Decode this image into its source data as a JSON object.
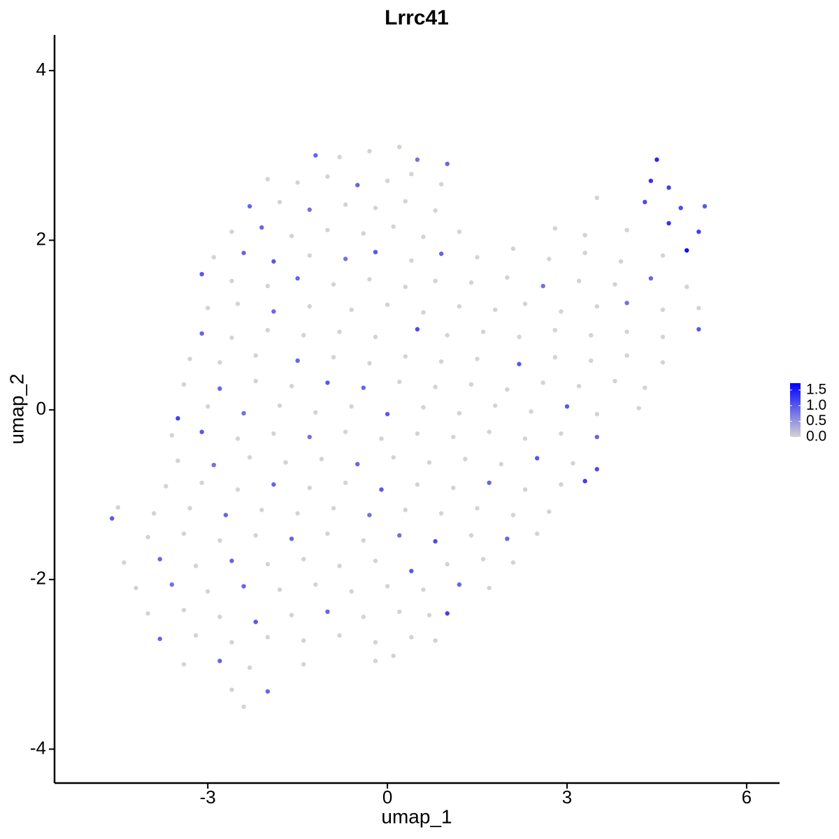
{
  "chart_data": {
    "type": "scatter",
    "title": "Lrrc41",
    "x_label": "umap_1",
    "y_label": "umap_2",
    "xlim": [
      -5.56,
      6.55
    ],
    "ylim": [
      -4.4,
      4.42
    ],
    "xticks": [
      -3,
      0,
      3,
      6
    ],
    "yticks": [
      -4,
      -2,
      0,
      2,
      4
    ],
    "low_color": "#d3d3d3",
    "high_color": "#0000ff",
    "color_range": [
      0,
      1.72
    ],
    "legend_ticks": [
      {
        "value": 0,
        "label": "0.0"
      },
      0.5,
      {
        "value": 1,
        "label": "1.0"
      },
      1.5
    ],
    "legend_position": "right",
    "points": [
      [
        -1.2,
        3.0,
        0.9
      ],
      [
        -0.8,
        2.98,
        0
      ],
      [
        -0.3,
        3.05,
        0
      ],
      [
        0.2,
        3.1,
        0
      ],
      [
        0.5,
        2.95,
        0.8
      ],
      [
        1.0,
        2.9,
        0.9
      ],
      [
        4.5,
        2.95,
        1.4
      ],
      [
        -2.0,
        2.72,
        0
      ],
      [
        -1.5,
        2.68,
        0
      ],
      [
        -1.0,
        2.75,
        0
      ],
      [
        -0.5,
        2.65,
        0.9
      ],
      [
        0.0,
        2.7,
        0
      ],
      [
        0.4,
        2.78,
        0
      ],
      [
        0.9,
        2.66,
        0
      ],
      [
        4.4,
        2.7,
        1.3
      ],
      [
        4.7,
        2.62,
        1.2
      ],
      [
        -2.3,
        2.4,
        0.9
      ],
      [
        -1.8,
        2.45,
        0
      ],
      [
        -1.3,
        2.36,
        0.8
      ],
      [
        -0.7,
        2.42,
        0
      ],
      [
        -0.2,
        2.38,
        0
      ],
      [
        0.3,
        2.46,
        0
      ],
      [
        0.8,
        2.35,
        0
      ],
      [
        3.5,
        2.5,
        0
      ],
      [
        4.3,
        2.45,
        1.1
      ],
      [
        4.9,
        2.38,
        1.1
      ],
      [
        5.3,
        2.4,
        1.0
      ],
      [
        -2.6,
        2.1,
        0
      ],
      [
        -2.1,
        2.15,
        0.9
      ],
      [
        -1.6,
        2.05,
        0
      ],
      [
        -1.0,
        2.12,
        0
      ],
      [
        -0.4,
        2.08,
        0
      ],
      [
        0.1,
        2.16,
        0
      ],
      [
        0.6,
        2.04,
        0
      ],
      [
        1.2,
        2.1,
        0
      ],
      [
        2.8,
        2.14,
        0
      ],
      [
        3.3,
        2.06,
        0
      ],
      [
        4.0,
        2.12,
        0
      ],
      [
        4.7,
        2.2,
        1.3
      ],
      [
        5.2,
        2.1,
        1.2
      ],
      [
        -2.9,
        1.8,
        0
      ],
      [
        -2.4,
        1.85,
        0.9
      ],
      [
        -1.9,
        1.75,
        1.0
      ],
      [
        -1.3,
        1.82,
        0
      ],
      [
        -0.7,
        1.78,
        0.8
      ],
      [
        -0.2,
        1.86,
        1.0
      ],
      [
        0.4,
        1.76,
        0
      ],
      [
        0.9,
        1.84,
        0.9
      ],
      [
        1.5,
        1.8,
        0
      ],
      [
        2.1,
        1.9,
        0
      ],
      [
        2.7,
        1.78,
        0
      ],
      [
        3.3,
        1.85,
        0
      ],
      [
        3.9,
        1.75,
        0
      ],
      [
        4.6,
        1.82,
        0
      ],
      [
        5.0,
        1.88,
        1.6
      ],
      [
        -3.1,
        1.6,
        1.0
      ],
      [
        -2.6,
        1.52,
        0
      ],
      [
        -2.0,
        1.46,
        0
      ],
      [
        -1.5,
        1.55,
        0.9
      ],
      [
        -0.9,
        1.48,
        0
      ],
      [
        -0.3,
        1.54,
        0
      ],
      [
        0.3,
        1.45,
        0
      ],
      [
        0.8,
        1.52,
        0
      ],
      [
        1.4,
        1.5,
        0
      ],
      [
        2.0,
        1.56,
        0
      ],
      [
        2.6,
        1.46,
        0.8
      ],
      [
        3.2,
        1.52,
        0
      ],
      [
        3.8,
        1.48,
        0
      ],
      [
        4.4,
        1.55,
        0.9
      ],
      [
        5.0,
        1.45,
        0
      ],
      [
        -3.0,
        1.2,
        0
      ],
      [
        -2.5,
        1.25,
        0
      ],
      [
        -1.9,
        1.16,
        0.9
      ],
      [
        -1.3,
        1.22,
        0
      ],
      [
        -0.6,
        1.18,
        0
      ],
      [
        0.0,
        1.24,
        0
      ],
      [
        0.6,
        1.15,
        0
      ],
      [
        1.2,
        1.22,
        0
      ],
      [
        1.8,
        1.18,
        0
      ],
      [
        2.3,
        1.25,
        0
      ],
      [
        2.9,
        1.16,
        0
      ],
      [
        3.5,
        1.22,
        0
      ],
      [
        4.0,
        1.26,
        0.8
      ],
      [
        4.6,
        1.18,
        0
      ],
      [
        5.2,
        1.2,
        0
      ],
      [
        -3.1,
        0.9,
        0.9
      ],
      [
        -2.6,
        0.85,
        0
      ],
      [
        -2.0,
        0.94,
        0
      ],
      [
        -1.4,
        0.88,
        0
      ],
      [
        -0.8,
        0.92,
        0
      ],
      [
        -0.2,
        0.86,
        0
      ],
      [
        0.5,
        0.95,
        1.1
      ],
      [
        1.0,
        0.88,
        0
      ],
      [
        1.6,
        0.92,
        0
      ],
      [
        2.2,
        0.86,
        0
      ],
      [
        2.8,
        0.94,
        0
      ],
      [
        3.4,
        0.88,
        0
      ],
      [
        4.0,
        0.92,
        0
      ],
      [
        4.6,
        0.86,
        0
      ],
      [
        5.2,
        0.95,
        1.0
      ],
      [
        -3.3,
        0.6,
        0
      ],
      [
        -2.8,
        0.56,
        0
      ],
      [
        -2.2,
        0.64,
        0
      ],
      [
        -1.5,
        0.58,
        0.9
      ],
      [
        -0.9,
        0.62,
        0
      ],
      [
        -0.3,
        0.55,
        0
      ],
      [
        0.3,
        0.63,
        0
      ],
      [
        0.9,
        0.57,
        0
      ],
      [
        1.5,
        0.6,
        0
      ],
      [
        2.2,
        0.54,
        1.0
      ],
      [
        2.8,
        0.62,
        0
      ],
      [
        3.4,
        0.58,
        0
      ],
      [
        4.0,
        0.64,
        0
      ],
      [
        4.6,
        0.56,
        0
      ],
      [
        -3.4,
        0.3,
        0
      ],
      [
        -2.8,
        0.25,
        0.9
      ],
      [
        -2.2,
        0.34,
        0
      ],
      [
        -1.6,
        0.28,
        0
      ],
      [
        -1.0,
        0.32,
        1.0
      ],
      [
        -0.4,
        0.26,
        0.9
      ],
      [
        0.2,
        0.33,
        0
      ],
      [
        0.8,
        0.27,
        0
      ],
      [
        1.4,
        0.3,
        0
      ],
      [
        2.0,
        0.24,
        0
      ],
      [
        2.6,
        0.32,
        0
      ],
      [
        3.2,
        0.28,
        0
      ],
      [
        3.8,
        0.34,
        0
      ],
      [
        4.3,
        0.26,
        0
      ],
      [
        -3.5,
        -0.1,
        1.2
      ],
      [
        -3.0,
        0.04,
        0
      ],
      [
        -2.4,
        -0.04,
        0.8
      ],
      [
        -1.8,
        0.05,
        0
      ],
      [
        -1.2,
        -0.03,
        0
      ],
      [
        -0.6,
        0.04,
        0
      ],
      [
        0.0,
        -0.05,
        1.0
      ],
      [
        0.6,
        0.03,
        0
      ],
      [
        1.2,
        -0.04,
        0
      ],
      [
        1.8,
        0.05,
        0
      ],
      [
        2.4,
        -0.02,
        0
      ],
      [
        3.0,
        0.04,
        1.0
      ],
      [
        3.5,
        -0.05,
        0
      ],
      [
        4.2,
        0.02,
        0
      ],
      [
        -3.6,
        -0.3,
        0
      ],
      [
        -3.1,
        -0.26,
        1.0
      ],
      [
        -2.5,
        -0.34,
        0
      ],
      [
        -1.9,
        -0.28,
        0
      ],
      [
        -1.3,
        -0.32,
        0.8
      ],
      [
        -0.7,
        -0.26,
        0
      ],
      [
        -0.1,
        -0.34,
        0
      ],
      [
        0.5,
        -0.28,
        0
      ],
      [
        1.1,
        -0.32,
        0
      ],
      [
        1.7,
        -0.26,
        0
      ],
      [
        2.3,
        -0.34,
        0
      ],
      [
        2.9,
        -0.28,
        0
      ],
      [
        3.5,
        -0.32,
        0.9
      ],
      [
        -3.5,
        -0.6,
        0
      ],
      [
        -2.9,
        -0.65,
        0.8
      ],
      [
        -2.3,
        -0.56,
        0
      ],
      [
        -1.7,
        -0.62,
        0
      ],
      [
        -1.1,
        -0.58,
        0
      ],
      [
        -0.5,
        -0.64,
        0.9
      ],
      [
        0.1,
        -0.56,
        0
      ],
      [
        0.7,
        -0.62,
        0
      ],
      [
        1.3,
        -0.58,
        0
      ],
      [
        1.9,
        -0.64,
        0
      ],
      [
        2.5,
        -0.57,
        1.0
      ],
      [
        3.1,
        -0.63,
        0
      ],
      [
        3.5,
        -0.7,
        1.1
      ],
      [
        -3.7,
        -0.9,
        0
      ],
      [
        -3.1,
        -0.86,
        0
      ],
      [
        -2.5,
        -0.94,
        0
      ],
      [
        -1.9,
        -0.88,
        0.9
      ],
      [
        -1.3,
        -0.92,
        0
      ],
      [
        -0.7,
        -0.86,
        0
      ],
      [
        -0.1,
        -0.94,
        1.0
      ],
      [
        0.5,
        -0.88,
        0
      ],
      [
        1.1,
        -0.92,
        0
      ],
      [
        1.7,
        -0.86,
        0.9
      ],
      [
        2.3,
        -0.94,
        0
      ],
      [
        2.9,
        -0.88,
        0
      ],
      [
        3.3,
        -0.84,
        1.2
      ],
      [
        -4.5,
        -1.15,
        0
      ],
      [
        -4.6,
        -1.28,
        1.0
      ],
      [
        -3.9,
        -1.22,
        0
      ],
      [
        -3.3,
        -1.16,
        0
      ],
      [
        -2.7,
        -1.24,
        0.9
      ],
      [
        -2.1,
        -1.18,
        0
      ],
      [
        -1.5,
        -1.22,
        0
      ],
      [
        -0.9,
        -1.16,
        0
      ],
      [
        -0.3,
        -1.24,
        0.8
      ],
      [
        0.3,
        -1.18,
        0
      ],
      [
        0.9,
        -1.22,
        0
      ],
      [
        1.5,
        -1.16,
        0
      ],
      [
        2.1,
        -1.24,
        0
      ],
      [
        2.7,
        -1.2,
        0
      ],
      [
        -4.0,
        -1.5,
        0
      ],
      [
        -3.4,
        -1.46,
        0
      ],
      [
        -2.8,
        -1.54,
        0
      ],
      [
        -2.2,
        -1.48,
        0
      ],
      [
        -1.6,
        -1.52,
        0.9
      ],
      [
        -1.0,
        -1.46,
        0
      ],
      [
        -0.4,
        -1.54,
        0
      ],
      [
        0.2,
        -1.48,
        0.8
      ],
      [
        0.8,
        -1.55,
        1.1
      ],
      [
        1.4,
        -1.48,
        0
      ],
      [
        2.0,
        -1.52,
        0.9
      ],
      [
        2.5,
        -1.46,
        0
      ],
      [
        -4.4,
        -1.8,
        0
      ],
      [
        -3.8,
        -1.76,
        0.9
      ],
      [
        -3.2,
        -1.84,
        0
      ],
      [
        -2.6,
        -1.78,
        0.9
      ],
      [
        -2.0,
        -1.82,
        0
      ],
      [
        -1.4,
        -1.76,
        0
      ],
      [
        -0.8,
        -1.84,
        0
      ],
      [
        -0.2,
        -1.78,
        0
      ],
      [
        0.4,
        -1.9,
        1.0
      ],
      [
        1.0,
        -1.82,
        0
      ],
      [
        1.6,
        -1.76,
        0
      ],
      [
        2.1,
        -1.8,
        0
      ],
      [
        -4.2,
        -2.1,
        0
      ],
      [
        -3.6,
        -2.06,
        0.8
      ],
      [
        -3.0,
        -2.14,
        0
      ],
      [
        -2.4,
        -2.08,
        0.9
      ],
      [
        -1.8,
        -2.12,
        0
      ],
      [
        -1.2,
        -2.06,
        0
      ],
      [
        -0.6,
        -2.14,
        0
      ],
      [
        0.0,
        -2.08,
        0
      ],
      [
        0.6,
        -2.12,
        0
      ],
      [
        1.2,
        -2.06,
        0.9
      ],
      [
        1.7,
        -2.1,
        0
      ],
      [
        -4.0,
        -2.4,
        0
      ],
      [
        -3.4,
        -2.36,
        0
      ],
      [
        -2.8,
        -2.44,
        0
      ],
      [
        -2.2,
        -2.5,
        1.0
      ],
      [
        -1.6,
        -2.42,
        0
      ],
      [
        -1.0,
        -2.38,
        0.9
      ],
      [
        -0.4,
        -2.44,
        0
      ],
      [
        0.2,
        -2.38,
        0
      ],
      [
        0.7,
        -2.42,
        0
      ],
      [
        1.0,
        -2.4,
        1.2
      ],
      [
        -3.8,
        -2.7,
        0.9
      ],
      [
        -3.2,
        -2.66,
        0
      ],
      [
        -2.6,
        -2.74,
        0
      ],
      [
        -2.0,
        -2.68,
        0
      ],
      [
        -1.4,
        -2.72,
        0
      ],
      [
        -0.8,
        -2.66,
        0
      ],
      [
        -0.2,
        -2.74,
        0
      ],
      [
        0.4,
        -2.68,
        0
      ],
      [
        0.8,
        -2.72,
        0
      ],
      [
        -3.4,
        -3.0,
        0
      ],
      [
        -2.8,
        -2.96,
        0.9
      ],
      [
        -2.3,
        -3.04,
        0
      ],
      [
        -1.4,
        -3.0,
        0
      ],
      [
        -0.2,
        -2.96,
        0
      ],
      [
        0.1,
        -2.9,
        0
      ],
      [
        -2.6,
        -3.3,
        0
      ],
      [
        -2.0,
        -3.32,
        0.9
      ],
      [
        -2.4,
        -3.5,
        0
      ]
    ]
  }
}
